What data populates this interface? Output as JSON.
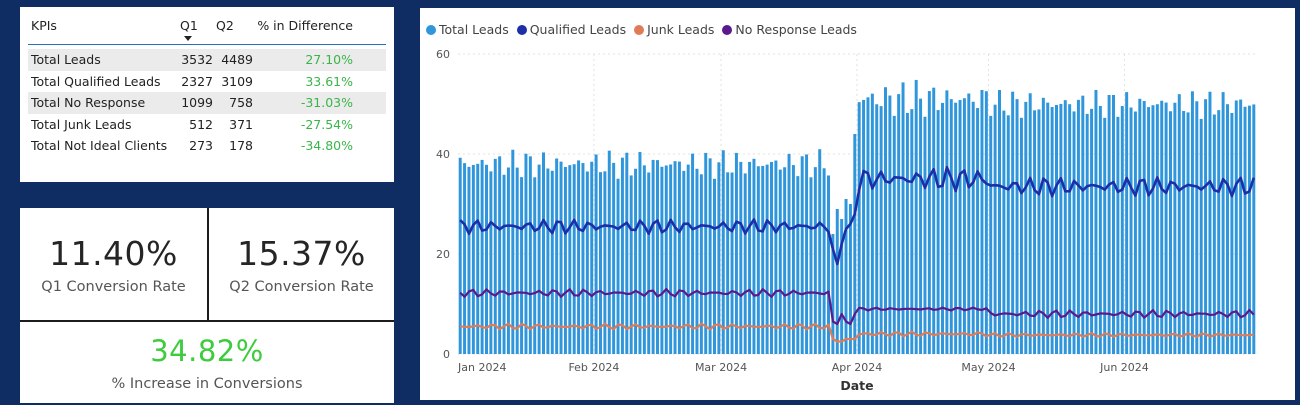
{
  "kpi_table": {
    "headers": {
      "kpi": "KPIs",
      "q1": "Q1",
      "q2": "Q2",
      "diff": "% in Difference"
    },
    "rows": [
      {
        "kpi": "Total Leads",
        "q1": "3532",
        "q2": "4489",
        "diff": "27.10%"
      },
      {
        "kpi": "Total Qualified Leads",
        "q1": "2327",
        "q2": "3109",
        "diff": "33.61%"
      },
      {
        "kpi": "Total No Response",
        "q1": "1099",
        "q2": "758",
        "diff": "-31.03%"
      },
      {
        "kpi": "Total Junk Leads",
        "q1": "512",
        "q2": "371",
        "diff": "-27.54%"
      },
      {
        "kpi": "Total Not Ideal Clients",
        "q1": "273",
        "q2": "178",
        "diff": "-34.80%"
      }
    ]
  },
  "cards": {
    "q1": {
      "value": "11.40%",
      "label": "Q1 Conversion Rate"
    },
    "q2": {
      "value": "15.37%",
      "label": "Q2 Conversion Rate"
    },
    "increase": {
      "value": "34.82%",
      "label": "% Increase in Conversions"
    }
  },
  "colors": {
    "total": "#2f96dc",
    "qualified": "#1c2fa8",
    "junk": "#e07b58",
    "noresponse": "#5a1a8c",
    "positive": "#3ab54a"
  },
  "chart_data": {
    "type": "bar+line",
    "xlabel": "Date",
    "ylabel": "",
    "x_ticks": [
      "Jan 2024",
      "Feb 2024",
      "Mar 2024",
      "Apr 2024",
      "May 2024",
      "Jun 2024"
    ],
    "y_ticks": [
      "0",
      "20",
      "40",
      "60"
    ],
    "ylim": [
      0,
      60
    ],
    "x_range": [
      "2024-01-01",
      "2024-06-30"
    ],
    "legend_position": "top-left",
    "grid": true,
    "series": [
      {
        "name": "Total Leads",
        "kind": "bar",
        "color_key": "total",
        "segments": [
          {
            "from": "2024-01-01",
            "to": "2024-03-25",
            "base": 38,
            "amplitude": 3
          },
          {
            "from": "2024-03-26",
            "to": "2024-03-31",
            "values": [
              24,
              29,
              27,
              31,
              30,
              44
            ]
          },
          {
            "from": "2024-04-01",
            "to": "2024-04-30",
            "base": 51,
            "amplitude": 4
          },
          {
            "from": "2024-05-01",
            "to": "2024-06-30",
            "base": 50,
            "amplitude": 3
          }
        ]
      },
      {
        "name": "Qualified Leads",
        "kind": "line",
        "color_key": "qualified",
        "segments": [
          {
            "from": "2024-01-01",
            "to": "2024-03-25",
            "base": 25.5,
            "amplitude": 1.5
          },
          {
            "from": "2024-03-26",
            "to": "2024-03-31",
            "values": [
              21,
              18,
              22,
              25,
              26,
              28
            ]
          },
          {
            "from": "2024-04-01",
            "to": "2024-04-30",
            "base": 35,
            "amplitude": 2.5
          },
          {
            "from": "2024-05-01",
            "to": "2024-06-30",
            "base": 33.5,
            "amplitude": 2
          }
        ]
      },
      {
        "name": "Junk Leads",
        "kind": "line",
        "color_key": "junk",
        "segments": [
          {
            "from": "2024-01-01",
            "to": "2024-03-25",
            "base": 5.5,
            "amplitude": 0.6
          },
          {
            "from": "2024-03-26",
            "to": "2024-03-31",
            "values": [
              3,
              2.5,
              2.5,
              3,
              3,
              3
            ]
          },
          {
            "from": "2024-04-01",
            "to": "2024-04-30",
            "base": 4,
            "amplitude": 0.5
          },
          {
            "from": "2024-05-01",
            "to": "2024-06-30",
            "base": 3.8,
            "amplitude": 0.4
          }
        ]
      },
      {
        "name": "No Response Leads",
        "kind": "line",
        "color_key": "noresponse",
        "segments": [
          {
            "from": "2024-01-01",
            "to": "2024-03-25",
            "base": 12.2,
            "amplitude": 0.8
          },
          {
            "from": "2024-03-26",
            "to": "2024-03-31",
            "values": [
              6.5,
              6,
              8,
              6.5,
              6,
              8
            ]
          },
          {
            "from": "2024-04-01",
            "to": "2024-04-30",
            "base": 9,
            "amplitude": 0.3
          },
          {
            "from": "2024-05-01",
            "to": "2024-06-30",
            "base": 8,
            "amplitude": 0.8
          }
        ]
      }
    ]
  }
}
